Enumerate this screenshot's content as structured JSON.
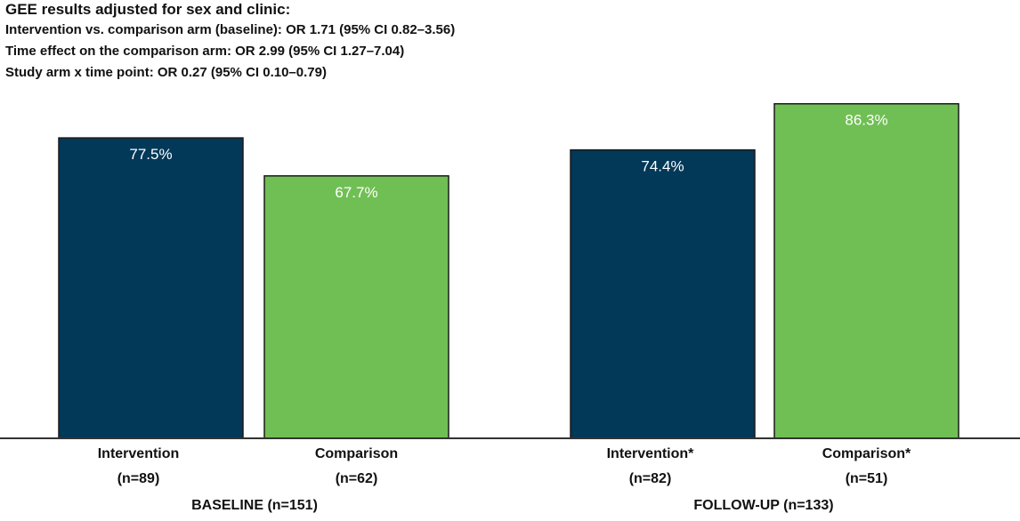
{
  "header": {
    "title": "GEE results adjusted for sex and clinic:",
    "lines": [
      "Intervention vs. comparison arm (baseline): OR 1.71 (95% CI 0.82–3.56)",
      "Time effect on the comparison arm: OR 2.99 (95% CI 1.27–7.04)",
      "Study arm x time point: OR 0.27 (95% CI 0.10–0.79)"
    ]
  },
  "colors": {
    "intervention": "#023858",
    "comparison": "#70bf54",
    "axis": "#333333",
    "bar_border": "#1a1a1a",
    "label_text": "#ffffff"
  },
  "chart_data": {
    "type": "bar",
    "title": "",
    "xlabel": "",
    "ylabel": "",
    "ylim": [
      0,
      100
    ],
    "grid": false,
    "groups": [
      {
        "label": "BASELINE (n=151)",
        "bars": [
          {
            "name": "Intervention",
            "n": "(n=89)",
            "value": 77.5,
            "label": "77.5%",
            "color_key": "intervention"
          },
          {
            "name": "Comparison",
            "n": "(n=62)",
            "value": 67.7,
            "label": "67.7%",
            "color_key": "comparison"
          }
        ]
      },
      {
        "label": "FOLLOW-UP (n=133)",
        "bars": [
          {
            "name": "Intervention*",
            "n": "(n=82)",
            "value": 74.4,
            "label": "74.4%",
            "color_key": "intervention"
          },
          {
            "name": "Comparison*",
            "n": "(n=51)",
            "value": 86.3,
            "label": "86.3%",
            "color_key": "comparison"
          }
        ]
      }
    ]
  }
}
